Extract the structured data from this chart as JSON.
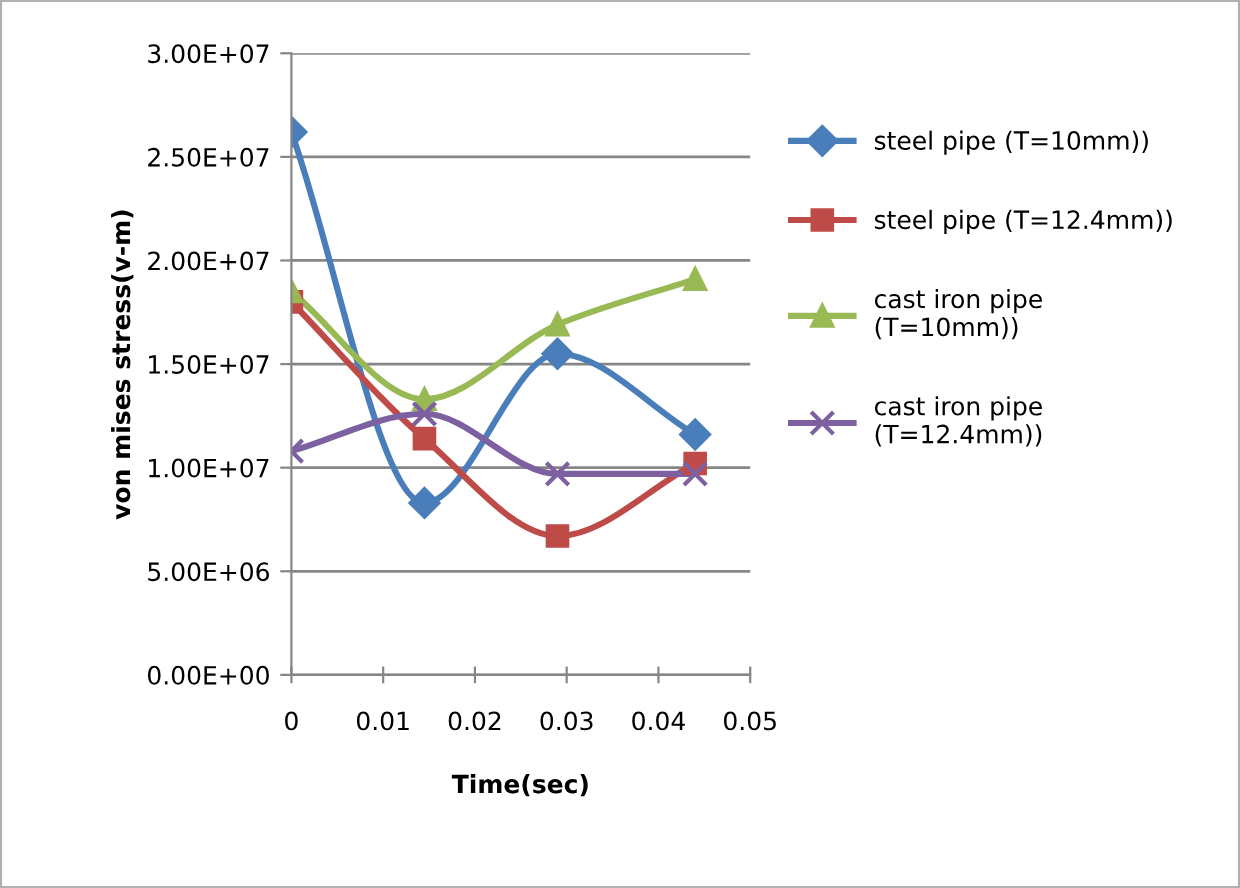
{
  "chart_data": {
    "type": "line",
    "xlabel": "Time(sec)",
    "ylabel": "von mises stress(v-m)",
    "x": [
      0,
      0.0145,
      0.029,
      0.044
    ],
    "series": [
      {
        "name": "steel pipe (T=10mm))",
        "color": "#4a7ebb",
        "marker": "diamond",
        "values": [
          26200000,
          8300000,
          15500000,
          11600000
        ]
      },
      {
        "name": "steel pipe (T=12.4mm))",
        "color": "#be4b48",
        "marker": "square",
        "values": [
          18000000,
          11400000,
          6700000,
          10200000
        ]
      },
      {
        "name": "cast iron pipe\n(T=10mm))",
        "color": "#98b954",
        "marker": "triangle",
        "values": [
          18500000,
          13300000,
          16900000,
          19100000
        ]
      },
      {
        "name": "cast iron pipe\n(T=12.4mm))",
        "color": "#7d60a0",
        "marker": "cross",
        "values": [
          10800000,
          12600000,
          9700000,
          9700000
        ]
      }
    ],
    "xlim": [
      0,
      0.05
    ],
    "xticks": [
      0,
      0.01,
      0.02,
      0.03,
      0.04,
      0.05
    ],
    "ylim": [
      0,
      30000000
    ],
    "yticks": [
      {
        "value": 0,
        "label": "0.00E+00"
      },
      {
        "value": 5000000,
        "label": "5.00E+06"
      },
      {
        "value": 10000000,
        "label": "1.00E+07"
      },
      {
        "value": 15000000,
        "label": "1.50E+07"
      },
      {
        "value": 20000000,
        "label": "2.00E+07"
      },
      {
        "value": 25000000,
        "label": "2.50E+07"
      },
      {
        "value": 30000000,
        "label": "3.00E+07"
      }
    ],
    "grid": "y",
    "legend": "right",
    "line_style": "solid"
  }
}
